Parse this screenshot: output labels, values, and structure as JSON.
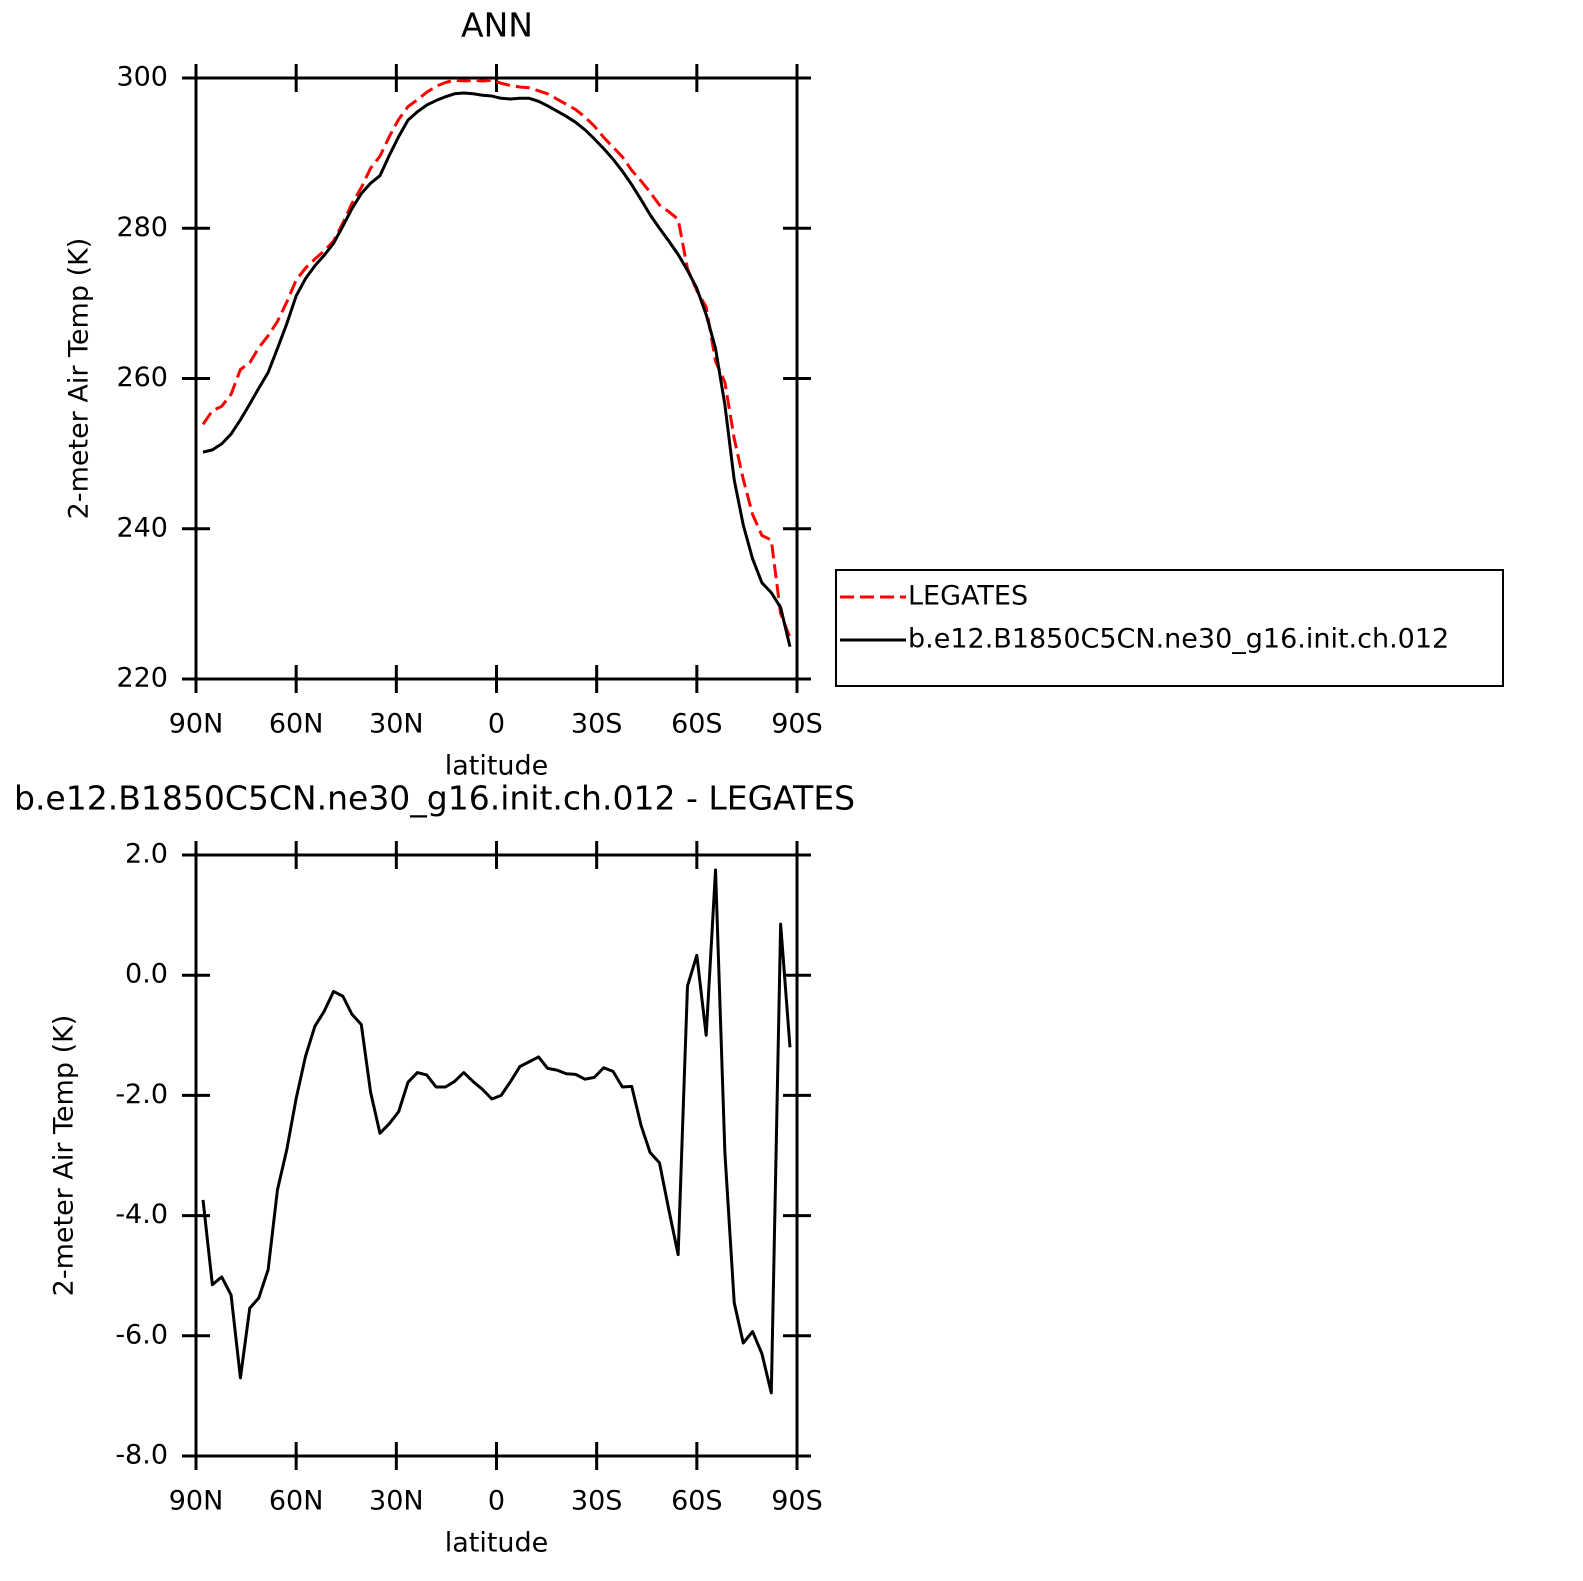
{
  "chart_data": [
    {
      "type": "line",
      "title": "ANN",
      "xlabel": "latitude",
      "ylabel": "2-meter Air Temp (K)",
      "x": [
        87.9,
        85.1,
        82.3,
        79.5,
        76.7,
        73.9,
        71.2,
        68.4,
        65.6,
        62.8,
        60.0,
        57.2,
        54.4,
        51.6,
        48.8,
        46.0,
        43.3,
        40.5,
        37.7,
        34.9,
        32.1,
        29.3,
        26.5,
        23.7,
        20.9,
        18.1,
        15.3,
        12.6,
        9.8,
        7.0,
        4.2,
        1.4,
        -1.4,
        -4.2,
        -7.0,
        -9.8,
        -12.6,
        -15.3,
        -18.1,
        -20.9,
        -23.7,
        -26.5,
        -29.3,
        -32.1,
        -34.9,
        -37.7,
        -40.5,
        -43.3,
        -46.0,
        -48.8,
        -51.6,
        -54.4,
        -57.2,
        -60.0,
        -62.8,
        -65.6,
        -68.4,
        -71.2,
        -73.9,
        -76.7,
        -79.5,
        -82.3,
        -85.1,
        -87.9
      ],
      "series": [
        {
          "name": "LEGATES",
          "color": "#ff0000",
          "dash": true,
          "values": [
            253.9,
            255.7,
            256.3,
            257.9,
            261.2,
            262.1,
            264.1,
            265.7,
            267.6,
            270.2,
            273.1,
            274.7,
            275.9,
            277.0,
            278.3,
            280.7,
            283.3,
            285.4,
            288.0,
            289.6,
            292.2,
            294.5,
            296.2,
            297.1,
            298.1,
            298.9,
            299.4,
            299.7,
            299.6,
            299.7,
            299.6,
            299.7,
            299.3,
            299.0,
            298.8,
            298.7,
            298.3,
            297.9,
            297.2,
            296.5,
            295.8,
            294.8,
            293.6,
            292.1,
            290.8,
            289.5,
            287.7,
            286.3,
            284.8,
            283.1,
            282.2,
            281.2,
            274.6,
            271.7,
            269.5,
            262.3,
            259.5,
            252.0,
            246.6,
            241.9,
            239.1,
            238.5,
            228.7,
            225.5
          ]
        },
        {
          "name": "b.e12.B1850C5CN.ne30_g16.init.ch.012",
          "color": "#000000",
          "dash": false,
          "values": [
            250.2,
            250.5,
            251.3,
            252.6,
            254.5,
            256.6,
            258.7,
            260.8,
            264.0,
            267.3,
            271.0,
            273.3,
            275.0,
            276.4,
            278.0,
            280.3,
            282.6,
            284.6,
            286.0,
            287.0,
            289.7,
            292.2,
            294.4,
            295.5,
            296.4,
            297.0,
            297.5,
            297.9,
            298.0,
            297.9,
            297.7,
            297.6,
            297.3,
            297.2,
            297.3,
            297.3,
            296.9,
            296.3,
            295.6,
            294.9,
            294.1,
            293.1,
            291.9,
            290.6,
            289.2,
            287.6,
            285.8,
            283.8,
            281.8,
            280.0,
            278.3,
            276.5,
            274.4,
            272.0,
            268.5,
            264.0,
            256.5,
            246.5,
            240.5,
            236.0,
            232.8,
            231.5,
            229.5,
            224.3
          ]
        }
      ],
      "xlim": [
        90,
        -90
      ],
      "xticks": [
        {
          "value": 90,
          "label": "90N"
        },
        {
          "value": 60,
          "label": "60N"
        },
        {
          "value": 30,
          "label": "30N"
        },
        0,
        {
          "value": -30,
          "label": "30S"
        },
        {
          "value": -60,
          "label": "60S"
        },
        {
          "value": -90,
          "label": "90S"
        }
      ],
      "ylim": [
        220,
        300
      ],
      "yticks": [
        220,
        240,
        260,
        280,
        300
      ],
      "legend": "right"
    },
    {
      "type": "line",
      "title": "b.e12.B1850C5CN.ne30_g16.init.ch.012 - LEGATES",
      "xlabel": "latitude",
      "ylabel": "2-meter Air Temp (K)",
      "x": [
        87.9,
        85.1,
        82.3,
        79.5,
        76.7,
        73.9,
        71.2,
        68.4,
        65.6,
        62.8,
        60.0,
        57.2,
        54.4,
        51.6,
        48.8,
        46.0,
        43.3,
        40.5,
        37.7,
        34.9,
        32.1,
        29.3,
        26.5,
        23.7,
        20.9,
        18.1,
        15.3,
        12.6,
        9.8,
        7.0,
        4.2,
        1.4,
        -1.4,
        -4.2,
        -7.0,
        -9.8,
        -12.6,
        -15.3,
        -18.1,
        -20.9,
        -23.7,
        -26.5,
        -29.3,
        -32.1,
        -34.9,
        -37.7,
        -40.5,
        -43.3,
        -46.0,
        -48.8,
        -51.6,
        -54.4,
        -57.2,
        -60.0,
        -62.8,
        -65.6,
        -68.4,
        -71.2,
        -73.9,
        -76.7,
        -79.5,
        -82.3,
        -85.1,
        -87.9
      ],
      "series": [
        {
          "color": "#000000",
          "dash": false,
          "values": [
            -3.74,
            -5.15,
            -5.02,
            -5.32,
            -6.7,
            -5.54,
            -5.37,
            -4.9,
            -3.57,
            -2.9,
            -2.05,
            -1.35,
            -0.85,
            -0.6,
            -0.27,
            -0.35,
            -0.65,
            -0.82,
            -1.95,
            -2.63,
            -2.47,
            -2.27,
            -1.78,
            -1.62,
            -1.66,
            -1.86,
            -1.86,
            -1.77,
            -1.62,
            -1.77,
            -1.9,
            -2.06,
            -2.0,
            -1.77,
            -1.52,
            -1.44,
            -1.36,
            -1.55,
            -1.58,
            -1.64,
            -1.65,
            -1.73,
            -1.7,
            -1.54,
            -1.6,
            -1.86,
            -1.85,
            -2.5,
            -2.95,
            -3.12,
            -3.9,
            -4.65,
            -0.18,
            0.33,
            -1.0,
            1.75,
            -2.95,
            -5.45,
            -6.12,
            -5.93,
            -6.3,
            -6.95,
            0.85,
            -1.2
          ]
        }
      ],
      "xlim": [
        90,
        -90
      ],
      "xticks": [
        {
          "value": 90,
          "label": "90N"
        },
        {
          "value": 60,
          "label": "60N"
        },
        {
          "value": 30,
          "label": "30N"
        },
        0,
        {
          "value": -30,
          "label": "30S"
        },
        {
          "value": -60,
          "label": "60S"
        },
        {
          "value": -90,
          "label": "90S"
        }
      ],
      "ylim": [
        -8,
        2
      ],
      "yticks": [
        {
          "value": -8,
          "label": "-8.0"
        },
        {
          "value": -6,
          "label": "-6.0"
        },
        {
          "value": -4,
          "label": "-4.0"
        },
        {
          "value": -2,
          "label": "-2.0"
        },
        {
          "value": 0,
          "label": "0.0"
        },
        {
          "value": 2,
          "label": "2.0"
        }
      ]
    }
  ]
}
